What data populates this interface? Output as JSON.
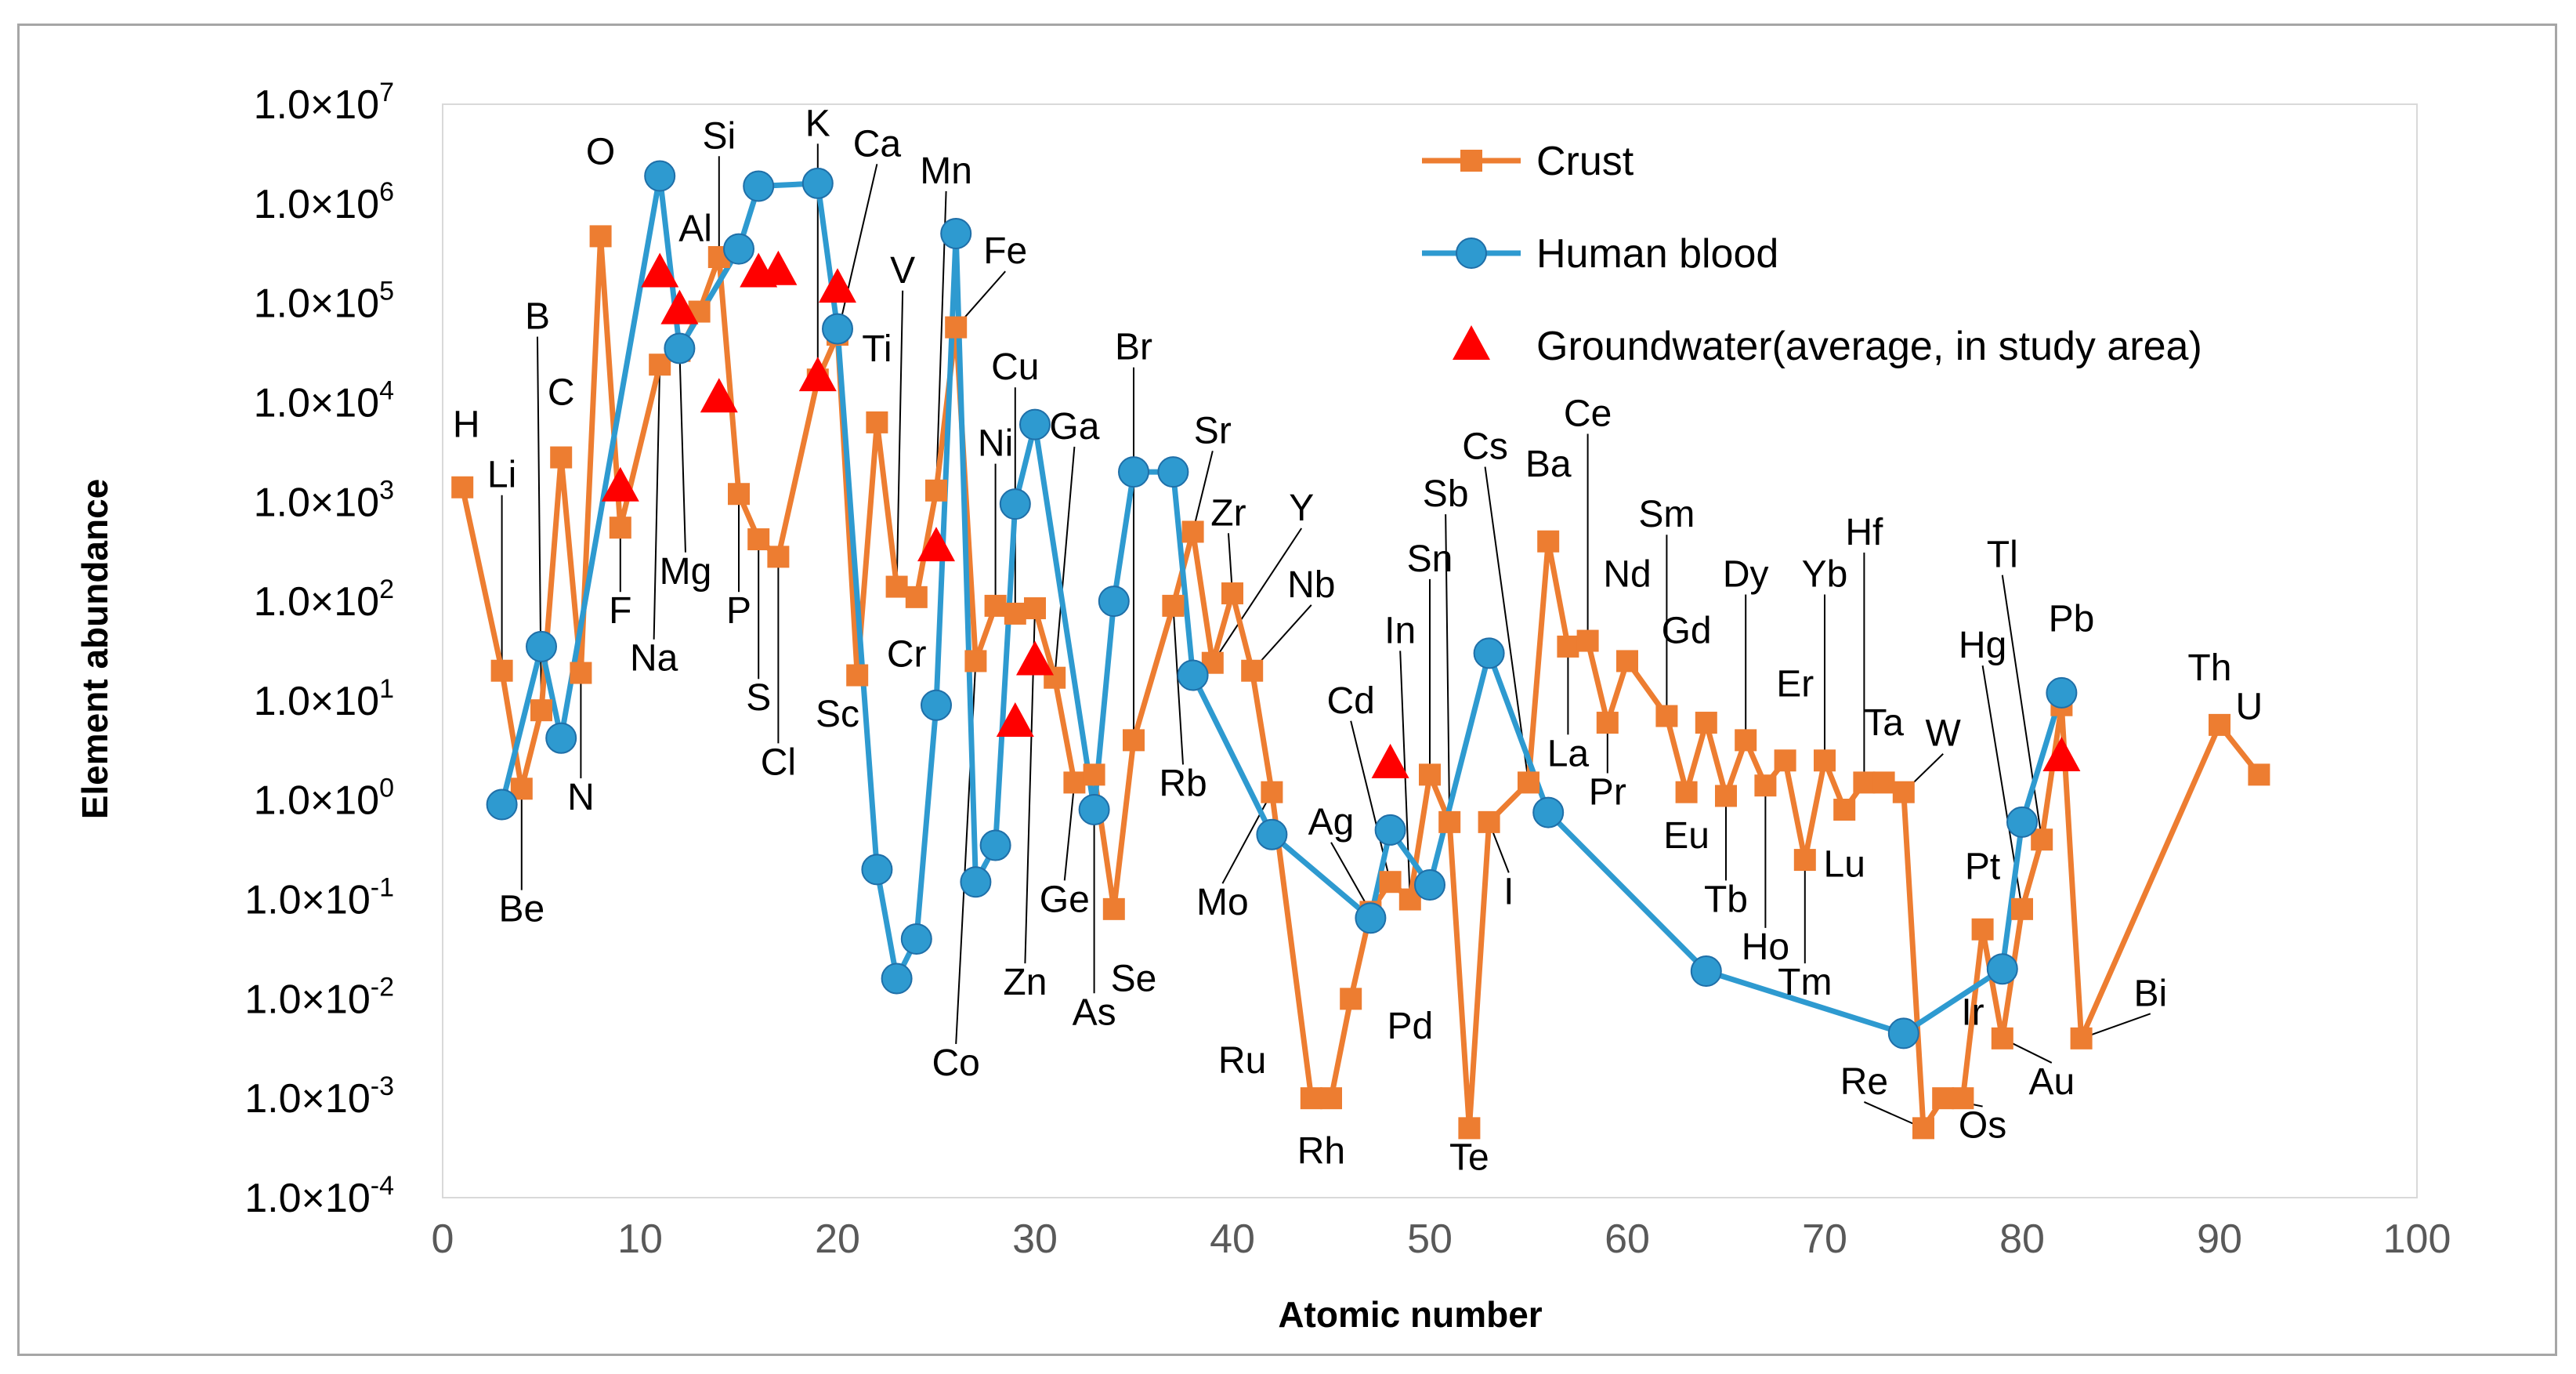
{
  "chart_data": {
    "type": "scatter",
    "title": "",
    "xlabel": "Atomic number",
    "ylabel": "Element abundance",
    "xlim": [
      0,
      100
    ],
    "x_ticks": [
      0,
      10,
      20,
      30,
      40,
      50,
      60,
      70,
      80,
      90,
      100
    ],
    "ylim": [
      0.0001,
      10000000
    ],
    "y_scale": "log",
    "y_ticks": [
      {
        "value": 10000000,
        "mant": "1.0×10",
        "exp": "7"
      },
      {
        "value": 1000000,
        "mant": "1.0×10",
        "exp": "6"
      },
      {
        "value": 100000,
        "mant": "1.0×10",
        "exp": "5"
      },
      {
        "value": 10000,
        "mant": "1.0×10",
        "exp": "4"
      },
      {
        "value": 1000,
        "mant": "1.0×10",
        "exp": "3"
      },
      {
        "value": 100,
        "mant": "1.0×10",
        "exp": "2"
      },
      {
        "value": 10,
        "mant": "1.0×10",
        "exp": "1"
      },
      {
        "value": 1,
        "mant": "1.0×10",
        "exp": "0"
      },
      {
        "value": 0.1,
        "mant": "1.0×10",
        "exp": "-1"
      },
      {
        "value": 0.01,
        "mant": "1.0×10",
        "exp": "-2"
      },
      {
        "value": 0.001,
        "mant": "1.0×10",
        "exp": "-3"
      },
      {
        "value": 0.0001,
        "mant": "1.0×10",
        "exp": "-4"
      }
    ],
    "grid": false,
    "legend_position": "top-right",
    "series": [
      {
        "name": "Crust",
        "color": "#ed7d31",
        "marker": "square",
        "line": true,
        "x": [
          1,
          3,
          4,
          5,
          6,
          7,
          8,
          9,
          11,
          12,
          13,
          14,
          15,
          16,
          17,
          19,
          20,
          21,
          22,
          23,
          24,
          25,
          26,
          27,
          28,
          29,
          30,
          31,
          32,
          33,
          34,
          35,
          37,
          38,
          39,
          40,
          41,
          42,
          44,
          45,
          46,
          47,
          48,
          49,
          50,
          51,
          52,
          53,
          55,
          56,
          57,
          58,
          59,
          60,
          62,
          63,
          64,
          65,
          66,
          67,
          68,
          69,
          70,
          71,
          72,
          73,
          74,
          75,
          76,
          77,
          78,
          79,
          80,
          81,
          82,
          83,
          90,
          92
        ],
        "y": [
          1400,
          20,
          1.3,
          8,
          2800,
          19,
          470000,
          550,
          24000,
          33000,
          82000,
          290000,
          1200,
          420,
          280,
          17000,
          48000,
          18,
          6300,
          140,
          110,
          1300,
          57000,
          25,
          90,
          75,
          85,
          17,
          1.5,
          1.8,
          0.08,
          4,
          90,
          500,
          24,
          120,
          20,
          1.2,
          0.001,
          0.001,
          0.01,
          0.075,
          0.15,
          0.1,
          1.8,
          0.6,
          0.0005,
          0.6,
          1.5,
          400,
          35,
          40,
          6,
          25,
          7,
          1.2,
          6,
          1.1,
          4,
          1.4,
          2.5,
          0.25,
          2.5,
          0.8,
          1.5,
          1.5,
          1.2,
          0.0005,
          0.001,
          0.001,
          0.05,
          0.004,
          0.08,
          0.4,
          9,
          0.004,
          5.7,
          1.8
        ]
      },
      {
        "name": "Human blood",
        "color": "#2e9ad0",
        "marker": "circle",
        "line": true,
        "x": [
          3,
          5,
          6,
          11,
          12,
          15,
          16,
          19,
          20,
          22,
          23,
          24,
          25,
          26,
          27,
          28,
          29,
          30,
          33,
          34,
          35,
          37,
          38,
          42,
          47,
          48,
          50,
          53,
          56,
          64,
          74,
          79,
          80,
          82
        ],
        "y": [
          0.9,
          35,
          4.2,
          1900000,
          35000,
          350000,
          1500000,
          1600000,
          55000,
          0.2,
          0.016,
          0.04,
          9,
          500000,
          0.15,
          0.35,
          950,
          6000,
          0.8,
          100,
          2000,
          2000,
          18,
          0.45,
          0.065,
          0.5,
          0.14,
          30,
          0.75,
          0.019,
          0.0045,
          0.02,
          0.6,
          12
        ]
      },
      {
        "name": "Groundwater(average, in study area)",
        "color": "#ff0000",
        "marker": "triangle",
        "line": false,
        "x": [
          9,
          11,
          12,
          14,
          16,
          17,
          19,
          20,
          25,
          29,
          30,
          48,
          82
        ],
        "y": [
          1400,
          200000,
          85000,
          11000,
          200000,
          210000,
          18000,
          140000,
          350,
          6,
          25,
          2.3,
          2.7
        ]
      }
    ],
    "annotations": [
      {
        "text": "H",
        "x": 1,
        "y": 1400,
        "lx": 1.2,
        "ly": 4500,
        "leader": false
      },
      {
        "text": "Li",
        "x": 3,
        "y": 20,
        "lx": 3.0,
        "ly": 1400,
        "leader": true
      },
      {
        "text": "Be",
        "x": 4,
        "y": 1.3,
        "lx": 4.0,
        "ly": 0.06,
        "leader": true
      },
      {
        "text": "B",
        "x": 5,
        "y": 8,
        "lx": 4.8,
        "ly": 55000,
        "leader": true
      },
      {
        "text": "C",
        "x": 6,
        "y": 2800,
        "lx": 6.0,
        "ly": 9500,
        "leader": false
      },
      {
        "text": "N",
        "x": 7,
        "y": 19,
        "lx": 7.0,
        "ly": 0.8,
        "leader": true
      },
      {
        "text": "O",
        "x": 8,
        "y": 470000,
        "lx": 8.0,
        "ly": 2500000,
        "leader": false
      },
      {
        "text": "F",
        "x": 9,
        "y": 550,
        "lx": 9.0,
        "ly": 60,
        "leader": true
      },
      {
        "text": "Na",
        "x": 11,
        "y": 24000,
        "lx": 10.7,
        "ly": 20,
        "leader": true
      },
      {
        "text": "Mg",
        "x": 12,
        "y": 33000,
        "lx": 12.3,
        "ly": 150,
        "leader": true
      },
      {
        "text": "Al",
        "x": 13,
        "y": 82000,
        "lx": 12.8,
        "ly": 420000,
        "leader": false
      },
      {
        "text": "Si",
        "x": 14,
        "y": 290000,
        "lx": 14.0,
        "ly": 3600000,
        "leader": true
      },
      {
        "text": "P",
        "x": 15,
        "y": 1200,
        "lx": 15.0,
        "ly": 60,
        "leader": true
      },
      {
        "text": "S",
        "x": 16,
        "y": 420,
        "lx": 16.0,
        "ly": 8,
        "leader": true
      },
      {
        "text": "Cl",
        "x": 17,
        "y": 280,
        "lx": 17.0,
        "ly": 1.8,
        "leader": true
      },
      {
        "text": "K",
        "x": 19,
        "y": 17000,
        "lx": 19.0,
        "ly": 4800000,
        "leader": true
      },
      {
        "text": "Ca",
        "x": 20,
        "y": 48000,
        "lx": 22.0,
        "ly": 3000000,
        "leader": true
      },
      {
        "text": "Sc",
        "x": 21,
        "y": 18,
        "lx": 20.0,
        "ly": 5.5,
        "leader": false
      },
      {
        "text": "Ti",
        "x": 22,
        "y": 6300,
        "lx": 22.0,
        "ly": 26000,
        "leader": false
      },
      {
        "text": "V",
        "x": 23,
        "y": 140,
        "lx": 23.3,
        "ly": 160000,
        "leader": true
      },
      {
        "text": "Cr",
        "x": 24,
        "y": 110,
        "lx": 23.5,
        "ly": 22,
        "leader": false
      },
      {
        "text": "Mn",
        "x": 25,
        "y": 1300,
        "lx": 25.5,
        "ly": 1600000,
        "leader": true
      },
      {
        "text": "Fe",
        "x": 26,
        "y": 57000,
        "lx": 28.5,
        "ly": 250000,
        "leader": true
      },
      {
        "text": "Co",
        "x": 27,
        "y": 25,
        "lx": 26.0,
        "ly": 0.0017,
        "leader": true
      },
      {
        "text": "Ni",
        "x": 28,
        "y": 90,
        "lx": 28.0,
        "ly": 2900,
        "leader": true
      },
      {
        "text": "Cu",
        "x": 29,
        "y": 75,
        "lx": 29.0,
        "ly": 17000,
        "leader": true
      },
      {
        "text": "Zn",
        "x": 30,
        "y": 85,
        "lx": 29.5,
        "ly": 0.011,
        "leader": true
      },
      {
        "text": "Ga",
        "x": 31,
        "y": 17,
        "lx": 32.0,
        "ly": 4300,
        "leader": true
      },
      {
        "text": "Ge",
        "x": 32,
        "y": 1.5,
        "lx": 31.5,
        "ly": 0.075,
        "leader": true
      },
      {
        "text": "As",
        "x": 33,
        "y": 1.8,
        "lx": 33.0,
        "ly": 0.0055,
        "leader": true
      },
      {
        "text": "Se",
        "x": 34,
        "y": 0.08,
        "lx": 35.0,
        "ly": 0.012,
        "leader": false
      },
      {
        "text": "Br",
        "x": 35,
        "y": 4,
        "lx": 35.0,
        "ly": 27000,
        "leader": true
      },
      {
        "text": "Rb",
        "x": 37,
        "y": 90,
        "lx": 37.5,
        "ly": 1.1,
        "leader": true
      },
      {
        "text": "Sr",
        "x": 38,
        "y": 500,
        "lx": 39.0,
        "ly": 3900,
        "leader": true
      },
      {
        "text": "Zr",
        "x": 40,
        "y": 120,
        "lx": 39.8,
        "ly": 580,
        "leader": true
      },
      {
        "text": "Y",
        "x": 39,
        "y": 24,
        "lx": 43.5,
        "ly": 650,
        "leader": true
      },
      {
        "text": "Nb",
        "x": 41,
        "y": 20,
        "lx": 44.0,
        "ly": 110,
        "leader": true
      },
      {
        "text": "Mo",
        "x": 42,
        "y": 1.2,
        "lx": 39.5,
        "ly": 0.07,
        "leader": true
      },
      {
        "text": "Ru",
        "x": 44,
        "y": 0.001,
        "lx": 40.5,
        "ly": 0.0018,
        "leader": false
      },
      {
        "text": "Rh",
        "x": 45,
        "y": 0.001,
        "lx": 44.5,
        "ly": 0.00022,
        "leader": false
      },
      {
        "text": "Ag",
        "x": 47,
        "y": 0.075,
        "lx": 45.0,
        "ly": 0.45,
        "leader": true
      },
      {
        "text": "Cd",
        "x": 48,
        "y": 0.15,
        "lx": 46.0,
        "ly": 7.5,
        "leader": true
      },
      {
        "text": "In",
        "x": 49,
        "y": 0.1,
        "lx": 48.5,
        "ly": 38,
        "leader": true
      },
      {
        "text": "Sn",
        "x": 50,
        "y": 1.8,
        "lx": 50.0,
        "ly": 200,
        "leader": true
      },
      {
        "text": "Sb",
        "x": 51,
        "y": 0.6,
        "lx": 50.8,
        "ly": 900,
        "leader": true
      },
      {
        "text": "Pd",
        "x": 46,
        "y": 0.01,
        "lx": 49.0,
        "ly": 0.004,
        "leader": false
      },
      {
        "text": "Te",
        "x": 52,
        "y": 0.0005,
        "lx": 52.0,
        "ly": 0.00019,
        "leader": false
      },
      {
        "text": "Cs",
        "x": 55,
        "y": 1.5,
        "lx": 52.8,
        "ly": 2700,
        "leader": true
      },
      {
        "text": "I",
        "x": 53,
        "y": 0.6,
        "lx": 54.0,
        "ly": 0.09,
        "leader": true
      },
      {
        "text": "Ba",
        "x": 56,
        "y": 400,
        "lx": 56.0,
        "ly": 1800,
        "leader": false
      },
      {
        "text": "Ce",
        "x": 58,
        "y": 40,
        "lx": 58.0,
        "ly": 5800,
        "leader": true
      },
      {
        "text": "La",
        "x": 57,
        "y": 35,
        "lx": 57.0,
        "ly": 2.2,
        "leader": true
      },
      {
        "text": "Pr",
        "x": 59,
        "y": 6,
        "lx": 59.0,
        "ly": 0.9,
        "leader": true
      },
      {
        "text": "Nd",
        "x": 60,
        "y": 25,
        "lx": 60.0,
        "ly": 140,
        "leader": false
      },
      {
        "text": "Sm",
        "x": 62,
        "y": 7,
        "lx": 62.0,
        "ly": 560,
        "leader": true
      },
      {
        "text": "Gd",
        "x": 63,
        "y": 1.2,
        "lx": 63.0,
        "ly": 38,
        "leader": false
      },
      {
        "text": "Eu",
        "x": 64,
        "y": 6,
        "lx": 63.0,
        "ly": 0.33,
        "leader": false
      },
      {
        "text": "Dy",
        "x": 66,
        "y": 4,
        "lx": 66.0,
        "ly": 140,
        "leader": true
      },
      {
        "text": "Tb",
        "x": 65,
        "y": 1.1,
        "lx": 65.0,
        "ly": 0.075,
        "leader": true
      },
      {
        "text": "Ho",
        "x": 67,
        "y": 1.4,
        "lx": 67.0,
        "ly": 0.025,
        "leader": true
      },
      {
        "text": "Er",
        "x": 68,
        "y": 2.5,
        "lx": 68.5,
        "ly": 11,
        "leader": false
      },
      {
        "text": "Tm",
        "x": 69,
        "y": 0.25,
        "lx": 69.0,
        "ly": 0.011,
        "leader": true
      },
      {
        "text": "Yb",
        "x": 70,
        "y": 2.5,
        "lx": 70.0,
        "ly": 140,
        "leader": true
      },
      {
        "text": "Lu",
        "x": 71,
        "y": 0.8,
        "lx": 71.0,
        "ly": 0.17,
        "leader": false
      },
      {
        "text": "Hf",
        "x": 72,
        "y": 1.5,
        "lx": 72.0,
        "ly": 370,
        "leader": true
      },
      {
        "text": "Ta",
        "x": 73,
        "y": 1.5,
        "lx": 73.0,
        "ly": 4.5,
        "leader": false
      },
      {
        "text": "W",
        "x": 74,
        "y": 1.2,
        "lx": 76.0,
        "ly": 3.5,
        "leader": true
      },
      {
        "text": "Re",
        "x": 75,
        "y": 0.0005,
        "lx": 72.0,
        "ly": 0.0011,
        "leader": true
      },
      {
        "text": "Os",
        "x": 76,
        "y": 0.001,
        "lx": 78.0,
        "ly": 0.0004,
        "leader": true
      },
      {
        "text": "Ir",
        "x": 77,
        "y": 0.001,
        "lx": 77.5,
        "ly": 0.0055,
        "leader": false
      },
      {
        "text": "Pt",
        "x": 78,
        "y": 0.05,
        "lx": 78.0,
        "ly": 0.16,
        "leader": false
      },
      {
        "text": "Au",
        "x": 79,
        "y": 0.004,
        "lx": 81.5,
        "ly": 0.0011,
        "leader": true
      },
      {
        "text": "Hg",
        "x": 80,
        "y": 0.08,
        "lx": 78.0,
        "ly": 27,
        "leader": true
      },
      {
        "text": "Tl",
        "x": 81,
        "y": 0.4,
        "lx": 79.0,
        "ly": 220,
        "leader": true
      },
      {
        "text": "Pb",
        "x": 82,
        "y": 9,
        "lx": 82.5,
        "ly": 50,
        "leader": false
      },
      {
        "text": "Bi",
        "x": 83,
        "y": 0.004,
        "lx": 86.5,
        "ly": 0.0085,
        "leader": true
      },
      {
        "text": "Th",
        "x": 90,
        "y": 5.7,
        "lx": 89.5,
        "ly": 16,
        "leader": false
      },
      {
        "text": "U",
        "x": 92,
        "y": 1.8,
        "lx": 91.5,
        "ly": 6.5,
        "leader": false
      }
    ]
  }
}
